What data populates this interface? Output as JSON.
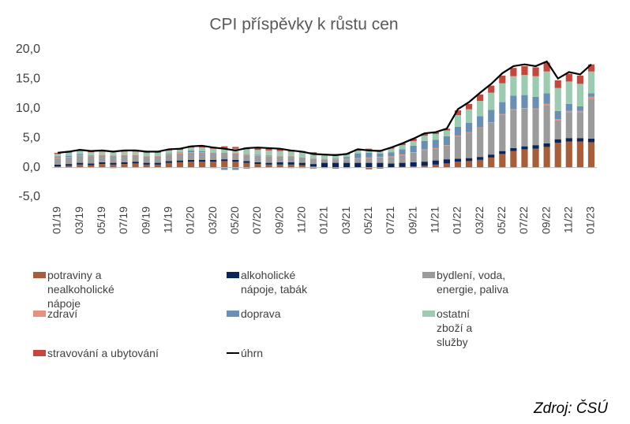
{
  "chart_data": {
    "type": "bar",
    "stacked": true,
    "title": "CPI příspěvky k růstu cen",
    "source": "Zdroj: ČSÚ",
    "categories": [
      "01/19",
      null,
      "03/19",
      null,
      "05/19",
      null,
      "07/19",
      null,
      "09/19",
      null,
      "11/19",
      null,
      "01/20",
      null,
      "03/20",
      null,
      "05/20",
      null,
      "07/20",
      null,
      "09/20",
      null,
      "11/20",
      null,
      "01/21",
      null,
      "03/21",
      null,
      "05/21",
      null,
      "07/21",
      null,
      "09/21",
      null,
      "11/21",
      null,
      "01/22",
      null,
      "03/22",
      null,
      "05/22",
      null,
      "07/22",
      null,
      "09/22",
      null,
      "11/22",
      null,
      "01/23"
    ],
    "ylim": [
      -5,
      20
    ],
    "yticks": [
      {
        "value": -5,
        "label": "-5,0"
      },
      {
        "value": 0,
        "label": "0,0"
      },
      {
        "value": 5,
        "label": "5,0"
      },
      {
        "value": 10,
        "label": "10,0"
      },
      {
        "value": 15,
        "label": "15,0"
      },
      {
        "value": 20,
        "label": "20,0"
      }
    ],
    "grid": false,
    "legend": "bottom",
    "series": [
      {
        "name": "potraviny a nealkoholické nápoje",
        "color": "#a65f3a",
        "values": [
          0.2,
          0.3,
          0.5,
          0.4,
          0.6,
          0.5,
          0.6,
          0.7,
          0.5,
          0.5,
          0.8,
          0.9,
          1.0,
          1.0,
          1.0,
          1.1,
          1.0,
          0.8,
          0.6,
          0.5,
          0.5,
          0.5,
          0.4,
          0.2,
          -0.1,
          -0.2,
          -0.1,
          0.0,
          -0.3,
          -0.2,
          0.0,
          0.1,
          0.2,
          0.3,
          0.5,
          0.7,
          1.0,
          1.1,
          1.3,
          1.7,
          2.3,
          2.8,
          3.1,
          3.2,
          3.5,
          4.2,
          4.4,
          4.4,
          4.3
        ]
      },
      {
        "name": "alkoholické nápoje, tabák",
        "color": "#0b2557",
        "values": [
          0.3,
          0.3,
          0.3,
          0.3,
          0.3,
          0.3,
          0.3,
          0.3,
          0.3,
          0.3,
          0.3,
          0.3,
          0.3,
          0.3,
          0.3,
          0.3,
          0.3,
          0.3,
          0.3,
          0.3,
          0.4,
          0.4,
          0.4,
          0.4,
          0.8,
          0.8,
          0.8,
          0.8,
          0.8,
          0.8,
          0.7,
          0.7,
          0.7,
          0.7,
          0.7,
          0.7,
          0.5,
          0.5,
          0.5,
          0.5,
          0.5,
          0.5,
          0.5,
          0.6,
          0.6,
          0.6,
          0.6,
          0.6,
          0.6
        ]
      },
      {
        "name": "bydlení, voda, energie, paliva",
        "color": "#9b9b9b",
        "values": [
          1.1,
          1.1,
          1.2,
          1.2,
          1.2,
          1.2,
          1.2,
          1.1,
          1.1,
          1.1,
          1.1,
          1.2,
          1.2,
          1.2,
          1.2,
          1.1,
          1.1,
          1.1,
          1.1,
          1.1,
          1.0,
          1.0,
          0.9,
          0.9,
          0.6,
          0.6,
          0.6,
          0.7,
          0.8,
          0.9,
          1.1,
          1.3,
          1.6,
          2.0,
          2.0,
          2.3,
          3.8,
          4.3,
          4.9,
          5.4,
          6.2,
          6.5,
          6.4,
          6.1,
          6.5,
          3.2,
          4.4,
          4.4,
          6.8
        ]
      },
      {
        "name": "zdraví",
        "color": "#e8907c",
        "values": [
          0.1,
          0.1,
          0.1,
          0.1,
          0.1,
          0.1,
          0.1,
          0.1,
          0.1,
          0.1,
          0.1,
          0.1,
          0.1,
          0.1,
          0.1,
          0.1,
          0.1,
          0.1,
          0.1,
          0.1,
          0.1,
          0.1,
          0.1,
          0.1,
          0.1,
          0.1,
          0.1,
          0.1,
          0.1,
          0.1,
          0.1,
          0.1,
          0.1,
          0.1,
          0.1,
          0.1,
          0.1,
          0.1,
          0.1,
          0.1,
          0.1,
          0.1,
          0.1,
          0.1,
          0.2,
          0.2,
          0.2,
          0.2,
          0.3
        ]
      },
      {
        "name": "doprava",
        "color": "#6a8fb3",
        "values": [
          0.2,
          0.2,
          0.2,
          0.1,
          0.0,
          -0.1,
          0.0,
          0.0,
          0.0,
          0.0,
          0.1,
          0.1,
          0.3,
          0.2,
          -0.1,
          -0.4,
          -0.4,
          -0.2,
          0.1,
          0.1,
          0.0,
          -0.1,
          -0.1,
          -0.2,
          0.0,
          0.1,
          0.3,
          0.8,
          0.8,
          0.6,
          0.7,
          0.9,
          1.1,
          1.4,
          1.4,
          1.5,
          1.5,
          1.6,
          1.9,
          2.1,
          2.0,
          2.3,
          2.2,
          2.0,
          1.8,
          1.4,
          1.2,
          0.8,
          0.6
        ]
      },
      {
        "name": "ostatní zboží a služby",
        "color": "#9dcbb2",
        "values": [
          0.4,
          0.5,
          0.5,
          0.5,
          0.5,
          0.5,
          0.5,
          0.5,
          0.5,
          0.5,
          0.5,
          0.4,
          0.5,
          0.6,
          0.6,
          0.7,
          0.7,
          0.8,
          0.8,
          0.8,
          0.8,
          0.7,
          0.7,
          0.7,
          0.6,
          0.5,
          0.4,
          0.5,
          0.5,
          0.5,
          0.6,
          0.7,
          0.8,
          0.9,
          1.0,
          1.0,
          2.0,
          2.3,
          2.6,
          2.9,
          3.2,
          3.3,
          3.4,
          3.5,
          3.7,
          3.9,
          3.8,
          3.8,
          3.7
        ]
      },
      {
        "name": "stravování a ubytování",
        "color": "#c0483e",
        "values": [
          0.2,
          0.2,
          0.2,
          0.2,
          0.2,
          0.2,
          0.2,
          0.2,
          0.2,
          0.2,
          0.2,
          0.2,
          0.3,
          0.3,
          0.3,
          0.3,
          0.3,
          0.3,
          0.3,
          0.3,
          0.3,
          0.3,
          0.3,
          0.3,
          0.2,
          0.2,
          0.2,
          0.2,
          0.2,
          0.1,
          0.2,
          0.3,
          0.4,
          0.4,
          0.3,
          0.3,
          0.8,
          0.9,
          1.1,
          1.2,
          1.3,
          1.4,
          1.5,
          1.5,
          1.5,
          1.3,
          1.3,
          1.4,
          1.2
        ]
      },
      {
        "name": "úhrn",
        "color": "#000000",
        "type": "line",
        "values": [
          2.5,
          2.7,
          3.0,
          2.8,
          2.9,
          2.7,
          2.9,
          2.9,
          2.7,
          2.7,
          3.1,
          3.2,
          3.6,
          3.7,
          3.4,
          3.2,
          2.9,
          3.3,
          3.4,
          3.3,
          3.2,
          2.9,
          2.7,
          2.3,
          2.2,
          2.1,
          2.3,
          3.1,
          2.9,
          2.8,
          3.4,
          4.1,
          4.9,
          5.8,
          6.0,
          6.6,
          9.9,
          11.1,
          12.7,
          14.2,
          16.0,
          17.2,
          17.5,
          17.2,
          18.0,
          15.1,
          16.2,
          15.8,
          17.5
        ]
      }
    ]
  }
}
